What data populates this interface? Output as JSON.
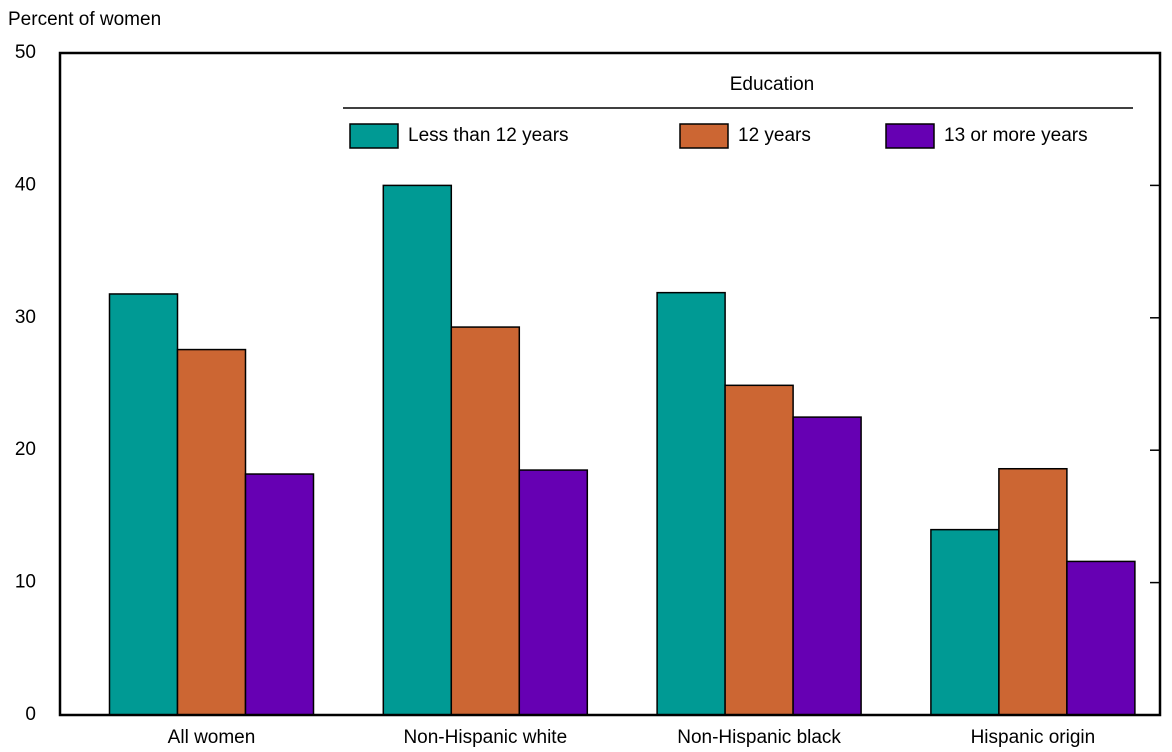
{
  "chart_data": {
    "type": "bar",
    "y_axis_label": "Percent of women",
    "legend_title": "Education",
    "categories": [
      "All women",
      "Non-Hispanic white",
      "Non-Hispanic black",
      "Hispanic origin"
    ],
    "series": [
      {
        "name": "Less than 12 years",
        "color": "#009a94",
        "values": [
          31.8,
          40.0,
          31.9,
          14.0
        ]
      },
      {
        "name": "12 years",
        "color": "#cc6633",
        "values": [
          27.6,
          29.3,
          24.9,
          18.6
        ]
      },
      {
        "name": "13 or more years",
        "color": "#6600b3",
        "values": [
          18.2,
          18.5,
          22.5,
          11.6
        ]
      }
    ],
    "ylim": [
      0,
      50
    ],
    "yticks": [
      0,
      10,
      20,
      30,
      40,
      50
    ],
    "grid": false
  }
}
